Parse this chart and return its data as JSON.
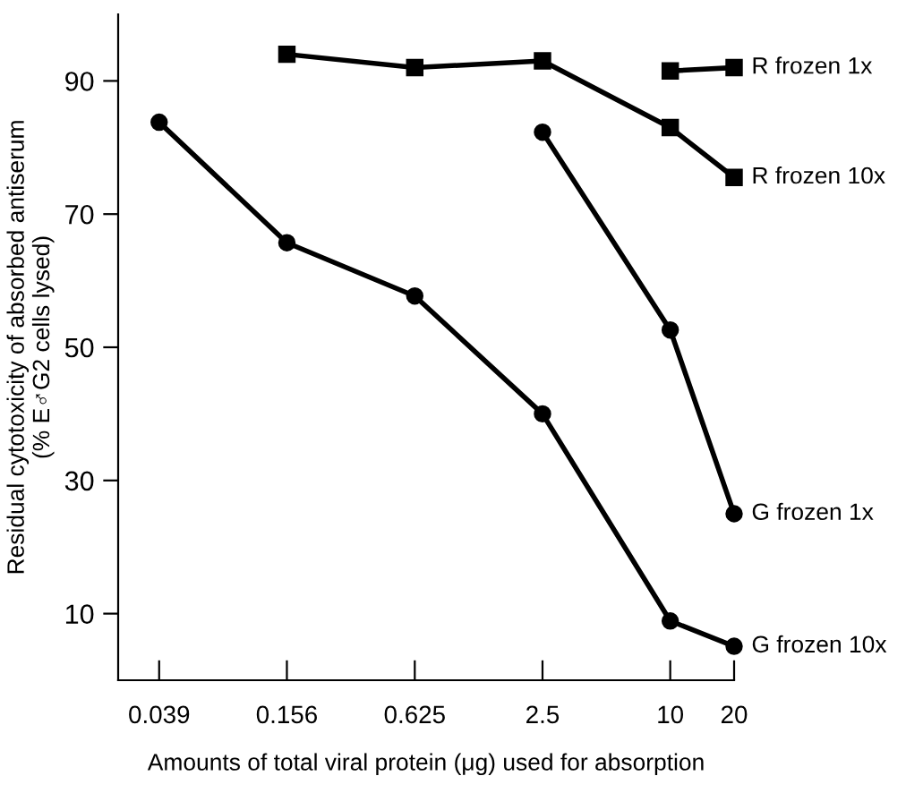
{
  "chart_data": {
    "type": "line",
    "xlabel": "Amounts of total viral protein (μg) used for absorption",
    "ylabel": "Residual cytotoxicity of absorbed antiserum\n(% E♂G2 cells lysed)",
    "log": "x",
    "xlim": [
      0.025,
      20
    ],
    "xticks": [
      0.039,
      0.156,
      0.625,
      2.5,
      10,
      20
    ],
    "ylim": [
      0,
      100
    ],
    "yticks": [
      10,
      30,
      50,
      70,
      90
    ],
    "grid": false,
    "legend": false,
    "line_style": "solid",
    "series": [
      {
        "name": "R frozen 1x",
        "color": "#000000",
        "marker": "square",
        "x": [
          10,
          20
        ],
        "values": [
          91.5,
          92
        ]
      },
      {
        "name": "R frozen 10x",
        "color": "#000000",
        "marker": "square",
        "x": [
          0.156,
          0.625,
          2.5,
          10,
          20
        ],
        "values": [
          94,
          92,
          93,
          83,
          75.5
        ]
      },
      {
        "name": "G frozen 1x",
        "color": "#000000",
        "marker": "circle",
        "x": [
          2.5,
          10,
          20
        ],
        "values": [
          82.3,
          52.6,
          25
        ]
      },
      {
        "name": "G frozen 10x",
        "color": "#000000",
        "marker": "circle",
        "x": [
          0.039,
          0.156,
          0.625,
          2.5,
          10,
          20
        ],
        "values": [
          83.8,
          65.7,
          57.7,
          40,
          8.9,
          5.1
        ]
      }
    ]
  }
}
